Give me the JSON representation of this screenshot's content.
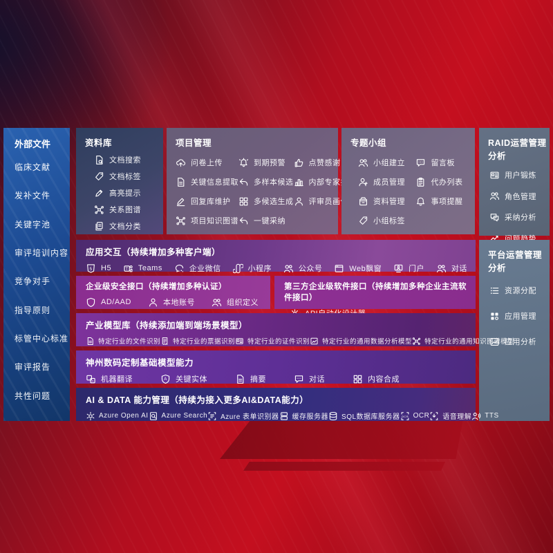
{
  "colors": {
    "background_red": "#c40f1f",
    "sidebar_blue": "#1d4b93",
    "repo_panel": "#3d4568",
    "top_panel_gray": "#6f5e7c",
    "ops_panel_gray": "#5d6b80",
    "band_purple": "#6d3a8a",
    "band_magenta": "#8e3094",
    "band_violet": "#6b2a86",
    "band_indigo": "#332e7e",
    "text": "#ffffff"
  },
  "sidebar": {
    "title": "外部文件",
    "items": [
      "临床文献",
      "发补文件",
      "关键字池",
      "审评培训内容",
      "竞争对手",
      "指导原则",
      "标管中心标准",
      "审评报告",
      "共性问题"
    ]
  },
  "panels": {
    "repository": {
      "title": "资料库",
      "items": [
        {
          "label": "文档搜索",
          "icon": "doc-search"
        },
        {
          "label": "文档标签",
          "icon": "tag",
          "name": "doc-tag"
        },
        {
          "label": "高亮提示",
          "icon": "highlighter"
        },
        {
          "label": "关系图谱",
          "icon": "graph",
          "name": "relation-graph"
        },
        {
          "label": "文档分类",
          "icon": "doc-stack"
        }
      ]
    },
    "project": {
      "title": "项目管理",
      "items": [
        {
          "label": "问卷上传",
          "icon": "cloud-upload"
        },
        {
          "label": "到期预警",
          "icon": "alarm"
        },
        {
          "label": "点赞感谢",
          "icon": "thumbs-up"
        },
        {
          "label": "关键信息提取",
          "icon": "doc",
          "name": "info-extract"
        },
        {
          "label": "多样本候选",
          "icon": "reply",
          "name": "multi-sample"
        },
        {
          "label": "内部专家排名",
          "icon": "ranking"
        },
        {
          "label": "回复库维护",
          "icon": "pen",
          "name": "reply-maintain"
        },
        {
          "label": "多候选生成",
          "icon": "grid",
          "name": "multi-generate"
        },
        {
          "label": "评审员画像",
          "icon": "person",
          "name": "reviewer-profile"
        },
        {
          "label": "项目知识图谱",
          "icon": "graph",
          "name": "project-knowledge-graph"
        },
        {
          "label": "一键采纳",
          "icon": "reply",
          "name": "one-click-adopt"
        }
      ]
    },
    "groups": {
      "title": "专题小组",
      "items": [
        {
          "label": "小组建立",
          "icon": "people",
          "name": "group-create"
        },
        {
          "label": "留言板",
          "icon": "chat",
          "name": "bbs-board"
        },
        {
          "label": "成员管理",
          "icon": "person-add",
          "name": "member-manage"
        },
        {
          "label": "代办列表",
          "icon": "clipboard",
          "name": "todo-list"
        },
        {
          "label": "资料管理",
          "icon": "archive",
          "name": "material-manage"
        },
        {
          "label": "事项提醒",
          "icon": "bell",
          "name": "reminder"
        },
        {
          "label": "小组标签",
          "icon": "tag",
          "name": "group-tag"
        }
      ]
    },
    "raid": {
      "title": "RAID运营管理分析",
      "items": [
        {
          "label": "用户锻炼",
          "icon": "id-card",
          "name": "user-training"
        },
        {
          "label": "角色管理",
          "icon": "people",
          "name": "role-manage"
        },
        {
          "label": "采纳分析",
          "icon": "qa-chat",
          "name": "adoption-analysis"
        },
        {
          "label": "问题趋势",
          "icon": "trend",
          "name": "issue-trend"
        }
      ]
    },
    "platform": {
      "title": "平台运营管理分析",
      "items": [
        {
          "label": "资源分配",
          "icon": "list",
          "name": "resource-allocate"
        },
        {
          "label": "应用管理",
          "icon": "apps",
          "name": "app-manage"
        },
        {
          "label": "应用分析",
          "icon": "app-chart",
          "name": "app-analysis"
        }
      ]
    }
  },
  "bands": {
    "interaction": {
      "title": "应用交互（持续增加多种客户端）",
      "items": [
        {
          "label": "H5",
          "icon": "h5"
        },
        {
          "label": "Teams",
          "icon": "teams"
        },
        {
          "label": "企业微信",
          "icon": "wechat",
          "name": "wechat-work"
        },
        {
          "label": "小程序",
          "icon": "miniprogram"
        },
        {
          "label": "公众号",
          "icon": "people",
          "name": "official-account"
        },
        {
          "label": "Web飘窗",
          "icon": "window",
          "name": "web-popup"
        },
        {
          "label": "门户",
          "icon": "portal"
        },
        {
          "label": "对话",
          "icon": "people",
          "name": "dialogue"
        }
      ]
    },
    "security": {
      "title": "企业级安全接口（持续增加多种认证）",
      "items": [
        {
          "label": "AD/AAD",
          "icon": "shield",
          "name": "ad-aad"
        },
        {
          "label": "本地账号",
          "icon": "person",
          "name": "local-account"
        },
        {
          "label": "组织定义",
          "icon": "people",
          "name": "org-define"
        }
      ]
    },
    "thirdparty": {
      "title": "第三方企业级软件接口（持续增加多种企业主流软件接口）",
      "items": [
        {
          "label": "API自动化设计器",
          "icon": "gear",
          "name": "api-designer"
        }
      ]
    },
    "industry": {
      "title": "产业模型库（持续添加端到端场景模型）",
      "items": [
        {
          "label": "特定行业的文件识别",
          "icon": "doc",
          "name": "file-recognition"
        },
        {
          "label": "特定行业的票据识别",
          "icon": "receipt",
          "name": "invoice-recognition"
        },
        {
          "label": "特定行业的证件识别",
          "icon": "id-card",
          "name": "cert-recognition"
        },
        {
          "label": "特定行业的通用数据分析模型",
          "icon": "app-chart",
          "name": "data-analysis-model"
        },
        {
          "label": "特定行业的通用知识图谱模型",
          "icon": "graph",
          "name": "knowledge-graph-model"
        }
      ]
    },
    "foundation": {
      "title": "神州数码定制基础模型能力",
      "items": [
        {
          "label": "机器翻译",
          "icon": "translate"
        },
        {
          "label": "关键实体",
          "icon": "shield-a",
          "name": "key-entity"
        },
        {
          "label": "摘要",
          "icon": "doc",
          "name": "summary"
        },
        {
          "label": "对话",
          "icon": "chat",
          "name": "chat-model"
        },
        {
          "label": "内容合成",
          "icon": "grid",
          "name": "content-compose"
        }
      ]
    },
    "aidata": {
      "title": "AI & DATA 能力管理（持续为接入更多AI&DATA能力）",
      "items": [
        {
          "label": "Azure Open AI",
          "icon": "openai"
        },
        {
          "label": "Azure Search",
          "icon": "search-doc",
          "name": "azure-search"
        },
        {
          "label": "Azure 表单识别器",
          "icon": "form",
          "name": "form-recognizer"
        },
        {
          "label": "缓存服务器",
          "icon": "server",
          "name": "cache-server"
        },
        {
          "label": "SQL数据库服务器",
          "icon": "db",
          "name": "sql-database"
        },
        {
          "label": "OCR",
          "icon": "ocr"
        },
        {
          "label": "语音理解",
          "icon": "speech",
          "name": "speech-understanding"
        },
        {
          "label": "TTS",
          "icon": "tts"
        }
      ]
    }
  }
}
